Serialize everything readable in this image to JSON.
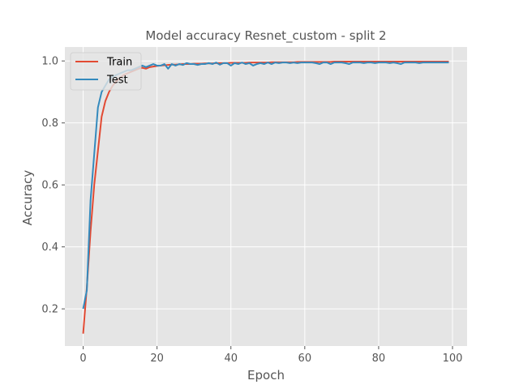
{
  "chart_data": {
    "type": "line",
    "title": "Model accuracy Resnet_custom - split 2",
    "xlabel": "Epoch",
    "ylabel": "Accuracy",
    "xlim": [
      -4.95,
      103.95
    ],
    "ylim": [
      0.08,
      1.045
    ],
    "xticks": [
      0,
      20,
      40,
      60,
      80,
      100
    ],
    "yticks": [
      0.2,
      0.4,
      0.6,
      0.8,
      1.0
    ],
    "xtick_labels": [
      "0",
      "20",
      "40",
      "60",
      "80",
      "100"
    ],
    "ytick_labels": [
      "0.2",
      "0.4",
      "0.6",
      "0.8",
      "1.0"
    ],
    "grid": true,
    "background": "#E5E5E5",
    "legend_position": "top-left",
    "x": [
      0,
      1,
      2,
      3,
      4,
      5,
      6,
      7,
      8,
      9,
      10,
      11,
      12,
      13,
      14,
      15,
      16,
      17,
      18,
      19,
      20,
      21,
      22,
      23,
      24,
      25,
      26,
      27,
      28,
      29,
      30,
      31,
      32,
      33,
      34,
      35,
      36,
      37,
      38,
      39,
      40,
      41,
      42,
      43,
      44,
      45,
      46,
      47,
      48,
      49,
      50,
      51,
      52,
      53,
      54,
      55,
      56,
      57,
      58,
      59,
      60,
      61,
      62,
      63,
      64,
      65,
      66,
      67,
      68,
      69,
      70,
      71,
      72,
      73,
      74,
      75,
      76,
      77,
      78,
      79,
      80,
      81,
      82,
      83,
      84,
      85,
      86,
      87,
      88,
      89,
      90,
      91,
      92,
      93,
      94,
      95,
      96,
      97,
      98,
      99
    ],
    "series": [
      {
        "name": "Train",
        "color": "#E24A33",
        "values": [
          0.12,
          0.27,
          0.45,
          0.6,
          0.71,
          0.82,
          0.87,
          0.9,
          0.92,
          0.935,
          0.945,
          0.955,
          0.96,
          0.965,
          0.97,
          0.975,
          0.978,
          0.975,
          0.98,
          0.982,
          0.984,
          0.985,
          0.986,
          0.987,
          0.988,
          0.988,
          0.989,
          0.99,
          0.99,
          0.99,
          0.991,
          0.991,
          0.991,
          0.992,
          0.992,
          0.992,
          0.993,
          0.993,
          0.993,
          0.993,
          0.994,
          0.994,
          0.994,
          0.994,
          0.994,
          0.995,
          0.995,
          0.995,
          0.995,
          0.995,
          0.995,
          0.996,
          0.996,
          0.996,
          0.996,
          0.996,
          0.996,
          0.996,
          0.997,
          0.997,
          0.997,
          0.997,
          0.997,
          0.997,
          0.997,
          0.997,
          0.997,
          0.997,
          0.998,
          0.998,
          0.998,
          0.998,
          0.998,
          0.998,
          0.998,
          0.998,
          0.998,
          0.998,
          0.998,
          0.998,
          0.998,
          0.998,
          0.998,
          0.998,
          0.998,
          0.998,
          0.998,
          0.998,
          0.998,
          0.998,
          0.998,
          0.998,
          0.998,
          0.998,
          0.998,
          0.998,
          0.998,
          0.998,
          0.998,
          0.998
        ]
      },
      {
        "name": "Test",
        "color": "#348ABD",
        "values": [
          0.2,
          0.26,
          0.55,
          0.7,
          0.85,
          0.9,
          0.92,
          0.94,
          0.95,
          0.955,
          0.96,
          0.965,
          0.97,
          0.97,
          0.975,
          0.98,
          0.985,
          0.98,
          0.985,
          0.99,
          0.985,
          0.985,
          0.99,
          0.975,
          0.99,
          0.985,
          0.99,
          0.987,
          0.993,
          0.99,
          0.99,
          0.987,
          0.99,
          0.99,
          0.993,
          0.99,
          0.995,
          0.988,
          0.993,
          0.993,
          0.985,
          0.993,
          0.99,
          0.995,
          0.99,
          0.993,
          0.985,
          0.99,
          0.993,
          0.99,
          0.995,
          0.99,
          0.995,
          0.993,
          0.995,
          0.995,
          0.993,
          0.995,
          0.993,
          0.995,
          0.995,
          0.995,
          0.995,
          0.993,
          0.99,
          0.995,
          0.995,
          0.99,
          0.995,
          0.995,
          0.995,
          0.993,
          0.99,
          0.995,
          0.995,
          0.995,
          0.993,
          0.995,
          0.995,
          0.993,
          0.995,
          0.995,
          0.995,
          0.993,
          0.995,
          0.993,
          0.99,
          0.995,
          0.995,
          0.995,
          0.995,
          0.993,
          0.995,
          0.995,
          0.995,
          0.995,
          0.995,
          0.995,
          0.995,
          0.995
        ]
      }
    ]
  }
}
